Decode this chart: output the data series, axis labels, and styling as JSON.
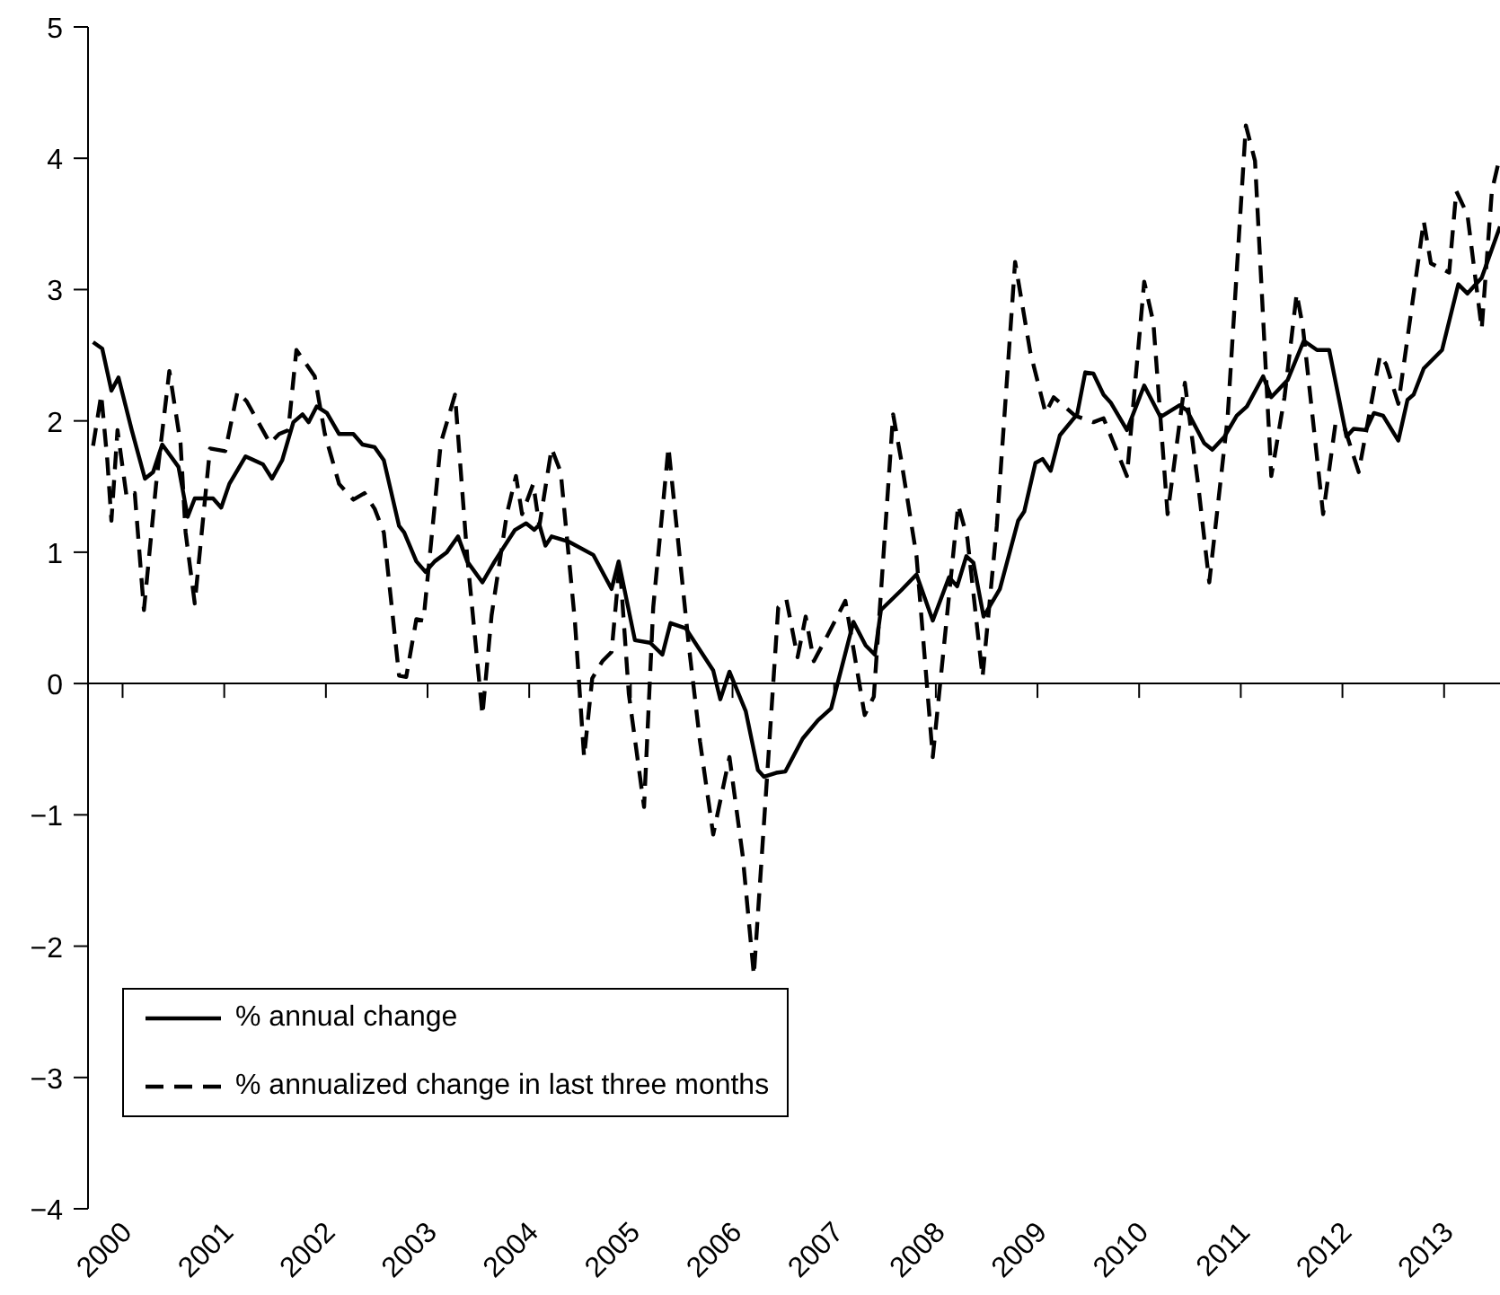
{
  "chart_data": {
    "type": "line",
    "xlim": [
      1999.66,
      2013.55
    ],
    "ylim": [
      -4,
      5
    ],
    "xticks": [
      2000,
      2001,
      2002,
      2003,
      2004,
      2005,
      2006,
      2007,
      2008,
      2009,
      2010,
      2011,
      2012,
      2013
    ],
    "yticks": [
      {
        "value": -4,
        "label": "−4"
      },
      {
        "value": -3,
        "label": "−3"
      },
      {
        "value": -2,
        "label": "−2"
      },
      {
        "value": -1,
        "label": "−1"
      },
      0,
      1,
      2,
      3,
      4,
      5
    ],
    "grid": false,
    "legend": "bottom left",
    "marker": "none",
    "ref_lines": [
      {
        "axis": "y",
        "value": 0,
        "color": "#000000",
        "line_style": "solid"
      }
    ],
    "series": [
      {
        "name": "% annual change",
        "color": "#000000",
        "line_style": "solid",
        "x": [
          1999.71,
          1999.8,
          1999.89,
          1999.96,
          2000.09,
          2000.22,
          2000.3,
          2000.39,
          2000.55,
          2000.64,
          2000.71,
          2000.89,
          2000.97,
          2001.05,
          2001.21,
          2001.38,
          2001.47,
          2001.57,
          2001.68,
          2001.77,
          2001.83,
          2001.91,
          2002.01,
          2002.13,
          2002.27,
          2002.36,
          2002.48,
          2002.57,
          2002.72,
          2002.77,
          2002.89,
          2002.98,
          2003.07,
          2003.19,
          2003.3,
          2003.39,
          2003.54,
          2003.66,
          2003.86,
          2003.97,
          2004.05,
          2004.1,
          2004.16,
          2004.22,
          2004.39,
          2004.63,
          2004.81,
          2004.88,
          2005.04,
          2005.19,
          2005.31,
          2005.39,
          2005.54,
          2005.81,
          2005.88,
          2005.97,
          2006.13,
          2006.25,
          2006.31,
          2006.43,
          2006.52,
          2006.69,
          2006.84,
          2006.97,
          2007.19,
          2007.31,
          2007.4,
          2007.46,
          2007.66,
          2007.81,
          2007.97,
          2008.13,
          2008.21,
          2008.3,
          2008.37,
          2008.47,
          2008.63,
          2008.81,
          2008.87,
          2008.98,
          2009.05,
          2009.13,
          2009.22,
          2009.39,
          2009.47,
          2009.55,
          2009.65,
          2009.72,
          2009.88,
          2010.05,
          2010.21,
          2010.4,
          2010.47,
          2010.64,
          2010.72,
          2010.84,
          2010.96,
          2011.06,
          2011.22,
          2011.3,
          2011.46,
          2011.62,
          2011.75,
          2011.87,
          2012.04,
          2012.11,
          2012.23,
          2012.31,
          2012.4,
          2012.55,
          2012.64,
          2012.7,
          2012.8,
          2012.98,
          2013.14,
          2013.23,
          2013.37,
          2013.55
        ],
        "values": [
          2.6,
          2.55,
          2.23,
          2.33,
          1.93,
          1.56,
          1.61,
          1.82,
          1.65,
          1.27,
          1.41,
          1.41,
          1.34,
          1.52,
          1.73,
          1.67,
          1.56,
          1.7,
          1.99,
          2.05,
          1.99,
          2.11,
          2.06,
          1.9,
          1.9,
          1.82,
          1.8,
          1.7,
          1.2,
          1.15,
          0.93,
          0.85,
          0.93,
          1.0,
          1.12,
          0.93,
          0.77,
          0.93,
          1.17,
          1.22,
          1.17,
          1.21,
          1.05,
          1.12,
          1.08,
          0.98,
          0.72,
          0.93,
          0.33,
          0.31,
          0.22,
          0.46,
          0.42,
          0.1,
          -0.12,
          0.09,
          -0.21,
          -0.66,
          -0.71,
          -0.68,
          -0.67,
          -0.42,
          -0.28,
          -0.19,
          0.47,
          0.29,
          0.22,
          0.56,
          0.71,
          0.83,
          0.48,
          0.81,
          0.74,
          0.97,
          0.92,
          0.51,
          0.72,
          1.24,
          1.31,
          1.68,
          1.71,
          1.62,
          1.89,
          2.05,
          2.37,
          2.36,
          2.2,
          2.14,
          1.93,
          2.27,
          2.03,
          2.12,
          2.08,
          1.83,
          1.78,
          1.88,
          2.04,
          2.11,
          2.34,
          2.18,
          2.31,
          2.61,
          2.54,
          2.54,
          1.88,
          1.94,
          1.93,
          2.06,
          2.04,
          1.85,
          2.16,
          2.2,
          2.4,
          2.54,
          3.04,
          2.97,
          3.09,
          3.48
        ]
      },
      {
        "name": "% annualized change in last three months",
        "color": "#000000",
        "line_style": "dashed",
        "x": [
          1999.71,
          1999.79,
          1999.85,
          1999.89,
          1999.95,
          2000.04,
          2000.12,
          2000.21,
          2000.33,
          2000.46,
          2000.57,
          2000.62,
          2000.71,
          2000.86,
          2001.01,
          2001.13,
          2001.22,
          2001.45,
          2001.54,
          2001.63,
          2001.71,
          2001.89,
          2001.99,
          2002.13,
          2002.27,
          2002.38,
          2002.48,
          2002.57,
          2002.72,
          2002.79,
          2002.89,
          2002.96,
          2003.13,
          2003.27,
          2003.39,
          2003.54,
          2003.63,
          2003.78,
          2003.87,
          2003.93,
          2004.04,
          2004.1,
          2004.22,
          2004.31,
          2004.45,
          2004.54,
          2004.62,
          2004.72,
          2004.81,
          2004.89,
          2004.98,
          2005.13,
          2005.22,
          2005.37,
          2005.57,
          2005.68,
          2005.81,
          2005.97,
          2006.1,
          2006.21,
          2006.34,
          2006.45,
          2006.53,
          2006.64,
          2006.72,
          2006.8,
          2006.93,
          2007.11,
          2007.3,
          2007.39,
          2007.58,
          2007.66,
          2007.81,
          2007.97,
          2008.22,
          2008.31,
          2008.46,
          2008.6,
          2008.78,
          2008.93,
          2009.08,
          2009.16,
          2009.37,
          2009.55,
          2009.65,
          2009.88,
          2010.05,
          2010.14,
          2010.28,
          2010.45,
          2010.58,
          2010.69,
          2010.87,
          2011.05,
          2011.14,
          2011.3,
          2011.43,
          2011.55,
          2011.61,
          2011.81,
          2011.93,
          2012.02,
          2012.16,
          2012.37,
          2012.43,
          2012.55,
          2012.8,
          2012.87,
          2013.05,
          2013.12,
          2013.23,
          2013.37,
          2013.47,
          2013.53
        ],
        "values": [
          1.81,
          2.2,
          1.7,
          1.24,
          1.93,
          1.42,
          1.45,
          0.56,
          1.52,
          2.38,
          1.83,
          1.15,
          0.61,
          1.79,
          1.77,
          2.22,
          2.15,
          1.83,
          1.9,
          1.93,
          2.54,
          2.34,
          1.9,
          1.52,
          1.4,
          1.45,
          1.33,
          1.15,
          0.06,
          0.05,
          0.49,
          0.48,
          1.83,
          2.2,
          0.97,
          -0.24,
          0.52,
          1.29,
          1.58,
          1.29,
          1.52,
          1.2,
          1.79,
          1.61,
          0.47,
          -0.56,
          0.04,
          0.17,
          0.24,
          0.92,
          -0.08,
          -0.94,
          0.58,
          1.8,
          0.29,
          -0.44,
          -1.15,
          -0.56,
          -1.31,
          -2.22,
          -0.71,
          0.58,
          0.64,
          0.2,
          0.51,
          0.17,
          0.36,
          0.63,
          -0.24,
          -0.1,
          2.05,
          1.7,
          0.97,
          -0.56,
          1.36,
          1.11,
          0.05,
          1.2,
          3.21,
          2.52,
          2.06,
          2.18,
          2.04,
          1.99,
          2.02,
          1.58,
          3.06,
          2.75,
          1.29,
          2.29,
          1.52,
          0.77,
          2.02,
          4.25,
          3.98,
          1.58,
          2.18,
          2.97,
          2.72,
          1.29,
          1.97,
          1.95,
          1.61,
          2.5,
          2.43,
          2.13,
          3.52,
          3.2,
          3.13,
          3.75,
          3.57,
          2.7,
          3.75,
          3.95
        ]
      }
    ]
  }
}
